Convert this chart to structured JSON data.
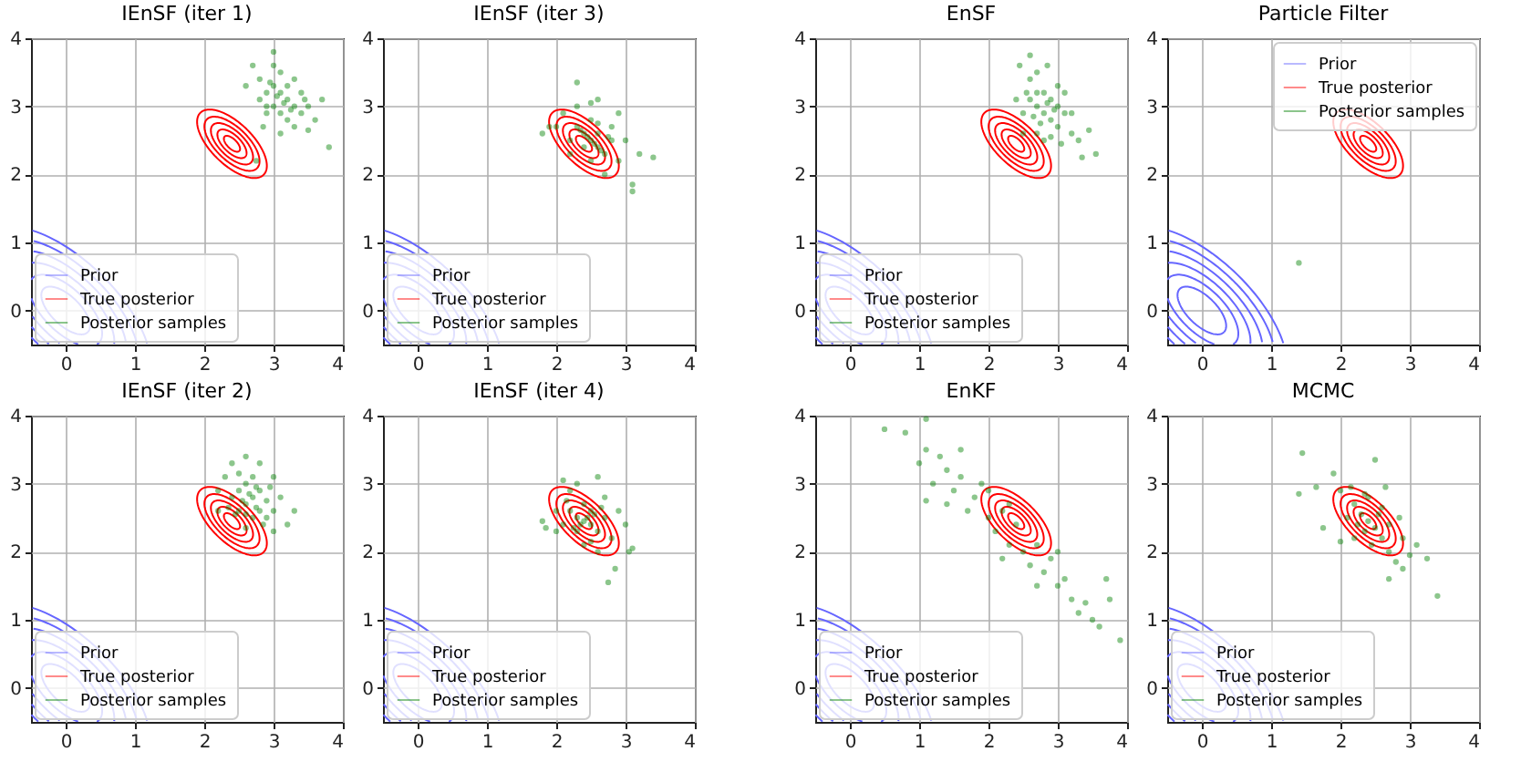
{
  "chart_data": [
    {
      "type": "scatter",
      "title": "IEnSF (iter 1)",
      "xlim": [
        -0.5,
        4
      ],
      "ylim": [
        -0.5,
        4
      ],
      "xticks": [
        0,
        1,
        2,
        3,
        4
      ],
      "yticks": [
        0,
        1,
        2,
        3,
        4
      ],
      "grid": true,
      "legend": "bottom left",
      "series": [
        {
          "name": "Prior",
          "type": "line",
          "color": "#6666ff"
        },
        {
          "name": "True posterior",
          "type": "line",
          "color": "#ff0000"
        },
        {
          "name": "Posterior samples",
          "color": "#008000",
          "marker": "circle",
          "x": [
            3.0,
            3.2,
            3.1,
            2.9,
            3.3,
            3.0,
            3.2,
            3.4,
            2.8,
            3.1,
            3.5,
            3.3,
            2.9,
            3.0,
            3.6,
            2.7,
            3.2,
            3.1,
            3.4,
            2.9,
            3.0,
            3.8,
            3.7,
            2.8,
            3.3,
            3.1,
            3.5,
            2.85,
            2.75,
            3.15,
            3.25,
            3.05,
            2.95,
            3.45,
            2.6
          ],
          "values": [
            3.3,
            3.1,
            2.9,
            3.2,
            3.0,
            3.0,
            3.3,
            2.9,
            3.4,
            3.5,
            3.0,
            2.7,
            2.9,
            3.6,
            2.8,
            3.6,
            2.8,
            3.2,
            3.2,
            3.0,
            3.8,
            2.4,
            3.1,
            3.1,
            3.4,
            2.6,
            2.65,
            2.7,
            2.2,
            3.05,
            2.95,
            3.15,
            3.35,
            3.1,
            3.3
          ]
        }
      ]
    },
    {
      "type": "scatter",
      "title": "IEnSF (iter 3)",
      "xlim": [
        -0.5,
        4
      ],
      "ylim": [
        -0.5,
        4
      ],
      "xticks": [
        0,
        1,
        2,
        3,
        4
      ],
      "yticks": [
        0,
        1,
        2,
        3,
        4
      ],
      "grid": true,
      "legend": "bottom left",
      "series": [
        {
          "name": "Prior",
          "type": "line",
          "color": "#6666ff"
        },
        {
          "name": "True posterior",
          "type": "line",
          "color": "#ff0000"
        },
        {
          "name": "Posterior samples",
          "color": "#008000",
          "marker": "circle",
          "x": [
            2.5,
            2.4,
            2.6,
            2.3,
            2.7,
            2.5,
            2.2,
            2.8,
            2.6,
            2.4,
            2.3,
            2.1,
            2.0,
            1.9,
            2.7,
            2.9,
            3.0,
            3.2,
            3.4,
            3.1,
            3.1,
            2.5,
            2.3,
            2.6,
            2.45,
            2.55,
            2.35,
            2.65,
            2.8,
            2.2,
            1.8,
            2.9,
            2.5,
            2.6,
            2.75
          ],
          "values": [
            2.5,
            2.6,
            2.4,
            2.7,
            2.3,
            2.8,
            2.5,
            2.5,
            2.6,
            2.4,
            3.0,
            2.9,
            2.7,
            2.7,
            2.0,
            2.2,
            2.5,
            2.3,
            2.25,
            1.85,
            1.75,
            3.05,
            3.35,
            3.1,
            2.55,
            2.45,
            2.65,
            2.35,
            2.7,
            2.3,
            2.6,
            2.9,
            2.2,
            2.75,
            2.55
          ]
        }
      ]
    },
    {
      "type": "scatter",
      "title": "EnSF",
      "xlim": [
        -0.5,
        4
      ],
      "ylim": [
        -0.5,
        4
      ],
      "xticks": [
        0,
        1,
        2,
        3,
        4
      ],
      "yticks": [
        0,
        1,
        2,
        3,
        4
      ],
      "grid": true,
      "legend": "bottom left",
      "series": [
        {
          "name": "Prior",
          "type": "line",
          "color": "#6666ff"
        },
        {
          "name": "True posterior",
          "type": "line",
          "color": "#ff0000"
        },
        {
          "name": "Posterior samples",
          "color": "#008000",
          "marker": "circle",
          "x": [
            2.8,
            2.7,
            2.9,
            2.6,
            3.0,
            2.8,
            2.5,
            3.1,
            2.7,
            2.9,
            2.6,
            2.7,
            2.6,
            2.85,
            3.0,
            3.2,
            3.3,
            3.45,
            3.55,
            3.35,
            2.5,
            2.4,
            2.95,
            2.75,
            2.85,
            3.1,
            2.65,
            3.05,
            2.55,
            2.9,
            3.2,
            2.45,
            2.8,
            3.0,
            2.7
          ],
          "values": [
            2.9,
            3.0,
            2.8,
            3.1,
            2.7,
            3.2,
            2.9,
            2.9,
            2.6,
            3.1,
            3.4,
            3.5,
            3.75,
            3.6,
            3.3,
            2.6,
            2.5,
            2.65,
            2.3,
            2.25,
            2.6,
            3.1,
            2.95,
            2.75,
            3.05,
            3.2,
            2.85,
            2.45,
            3.2,
            2.55,
            2.9,
            3.6,
            2.5,
            3.0,
            3.2
          ]
        }
      ]
    },
    {
      "type": "scatter",
      "title": "Particle Filter",
      "xlim": [
        -0.5,
        4
      ],
      "ylim": [
        -0.5,
        4
      ],
      "xticks": [
        0,
        1,
        2,
        3,
        4
      ],
      "yticks": [
        0,
        1,
        2,
        3,
        4
      ],
      "grid": true,
      "legend": "top right",
      "series": [
        {
          "name": "Prior",
          "type": "line",
          "color": "#6666ff"
        },
        {
          "name": "True posterior",
          "type": "line",
          "color": "#ff0000"
        },
        {
          "name": "Posterior samples",
          "color": "#008000",
          "marker": "circle",
          "x": [
            1.4
          ],
          "values": [
            0.7
          ]
        }
      ]
    },
    {
      "type": "scatter",
      "title": "IEnSF (iter 2)",
      "xlim": [
        -0.5,
        4
      ],
      "ylim": [
        -0.5,
        4
      ],
      "xticks": [
        0,
        1,
        2,
        3,
        4
      ],
      "yticks": [
        0,
        1,
        2,
        3,
        4
      ],
      "grid": true,
      "legend": "bottom left",
      "series": [
        {
          "name": "Prior",
          "type": "line",
          "color": "#6666ff"
        },
        {
          "name": "True posterior",
          "type": "line",
          "color": "#ff0000"
        },
        {
          "name": "Posterior samples",
          "color": "#008000",
          "marker": "circle",
          "x": [
            2.6,
            2.7,
            2.5,
            2.8,
            2.4,
            2.9,
            2.6,
            2.7,
            2.5,
            2.8,
            2.3,
            2.2,
            2.4,
            2.6,
            2.8,
            3.0,
            3.1,
            3.3,
            3.2,
            3.0,
            2.6,
            2.55,
            2.75,
            2.65,
            2.45,
            2.9,
            3.0,
            2.35,
            2.7,
            2.5,
            2.2,
            2.85,
            2.95,
            2.6,
            2.75
          ],
          "values": [
            2.7,
            2.8,
            2.9,
            2.6,
            2.8,
            2.5,
            3.0,
            2.5,
            2.6,
            2.9,
            3.1,
            2.9,
            3.3,
            3.4,
            3.3,
            3.1,
            2.8,
            2.6,
            2.4,
            2.3,
            2.35,
            2.75,
            2.65,
            2.85,
            2.55,
            2.75,
            2.6,
            2.65,
            3.1,
            3.15,
            2.6,
            2.4,
            2.95,
            2.55,
            2.95
          ]
        }
      ]
    },
    {
      "type": "scatter",
      "title": "IEnSF (iter 4)",
      "xlim": [
        -0.5,
        4
      ],
      "ylim": [
        -0.5,
        4
      ],
      "xticks": [
        0,
        1,
        2,
        3,
        4
      ],
      "yticks": [
        0,
        1,
        2,
        3,
        4
      ],
      "grid": true,
      "legend": "bottom left",
      "series": [
        {
          "name": "Prior",
          "type": "line",
          "color": "#6666ff"
        },
        {
          "name": "True posterior",
          "type": "line",
          "color": "#ff0000"
        },
        {
          "name": "Posterior samples",
          "color": "#008000",
          "marker": "circle",
          "x": [
            2.4,
            2.3,
            2.5,
            2.2,
            2.6,
            2.4,
            2.1,
            2.7,
            2.5,
            2.3,
            2.2,
            2.0,
            1.8,
            1.85,
            2.6,
            2.8,
            3.0,
            3.1,
            3.05,
            2.85,
            2.75,
            2.3,
            2.6,
            2.1,
            2.45,
            2.35,
            2.55,
            2.25,
            2.65,
            2.5,
            2.0,
            2.9,
            2.4,
            2.7,
            2.15
          ],
          "values": [
            2.45,
            2.5,
            2.4,
            2.6,
            2.3,
            2.7,
            2.4,
            2.5,
            2.6,
            2.3,
            2.9,
            2.6,
            2.45,
            2.35,
            2.0,
            2.2,
            2.4,
            2.05,
            2.0,
            1.75,
            1.55,
            3.0,
            3.1,
            3.05,
            2.5,
            2.4,
            2.55,
            2.35,
            2.65,
            2.15,
            2.3,
            2.6,
            2.1,
            2.8,
            2.75
          ]
        }
      ]
    },
    {
      "type": "scatter",
      "title": "EnKF",
      "xlim": [
        -0.5,
        4
      ],
      "ylim": [
        -0.5,
        4
      ],
      "xticks": [
        0,
        1,
        2,
        3,
        4
      ],
      "yticks": [
        0,
        1,
        2,
        3,
        4
      ],
      "grid": true,
      "legend": "bottom left",
      "series": [
        {
          "name": "Prior",
          "type": "line",
          "color": "#6666ff"
        },
        {
          "name": "True posterior",
          "type": "line",
          "color": "#ff0000"
        },
        {
          "name": "Posterior samples",
          "color": "#008000",
          "marker": "circle",
          "x": [
            0.5,
            0.8,
            1.1,
            1.0,
            1.1,
            1.3,
            1.2,
            1.4,
            1.5,
            1.6,
            1.8,
            1.7,
            1.9,
            2.0,
            2.1,
            2.2,
            2.3,
            2.4,
            2.5,
            2.6,
            2.7,
            2.8,
            2.9,
            3.0,
            3.1,
            3.2,
            3.3,
            3.4,
            3.5,
            3.6,
            3.75,
            3.9,
            3.7,
            1.6,
            2.0,
            2.3,
            2.7,
            1.4,
            3.0,
            2.2,
            1.1
          ],
          "values": [
            3.8,
            3.75,
            3.95,
            3.3,
            3.5,
            3.4,
            3.0,
            3.2,
            2.9,
            3.1,
            2.8,
            2.6,
            3.0,
            2.5,
            2.3,
            2.6,
            2.1,
            2.4,
            2.0,
            1.8,
            2.1,
            1.7,
            1.9,
            1.5,
            1.6,
            1.3,
            1.1,
            1.25,
            1.0,
            0.9,
            1.3,
            0.7,
            1.6,
            3.5,
            2.9,
            2.7,
            1.5,
            2.7,
            2.0,
            1.9,
            2.75
          ]
        }
      ]
    },
    {
      "type": "scatter",
      "title": "MCMC",
      "xlim": [
        -0.5,
        4
      ],
      "ylim": [
        -0.5,
        4
      ],
      "xticks": [
        0,
        1,
        2,
        3,
        4
      ],
      "yticks": [
        0,
        1,
        2,
        3,
        4
      ],
      "grid": true,
      "legend": "bottom left",
      "series": [
        {
          "name": "Prior",
          "type": "line",
          "color": "#6666ff"
        },
        {
          "name": "True posterior",
          "type": "line",
          "color": "#ff0000"
        },
        {
          "name": "Posterior samples",
          "color": "#008000",
          "marker": "circle",
          "x": [
            2.4,
            2.3,
            2.5,
            2.2,
            2.6,
            2.4,
            2.1,
            2.7,
            2.0,
            1.9,
            1.45,
            1.4,
            1.65,
            1.75,
            2.0,
            2.5,
            2.7,
            2.9,
            3.0,
            3.25,
            3.4,
            2.7,
            2.6,
            2.35,
            2.55,
            2.25,
            2.8,
            3.1,
            2.15,
            2.45,
            2.65,
            2.2,
            2.85,
            2.35,
            2.9
          ],
          "values": [
            2.45,
            2.55,
            2.35,
            2.7,
            2.2,
            2.8,
            2.5,
            2.4,
            2.9,
            3.15,
            3.45,
            2.85,
            2.95,
            2.35,
            2.15,
            3.35,
            2.0,
            2.2,
            1.95,
            1.9,
            1.35,
            1.6,
            2.65,
            2.3,
            2.55,
            2.4,
            1.85,
            2.1,
            2.95,
            2.1,
            2.95,
            2.2,
            2.5,
            2.85,
            1.75
          ]
        }
      ]
    }
  ]
}
